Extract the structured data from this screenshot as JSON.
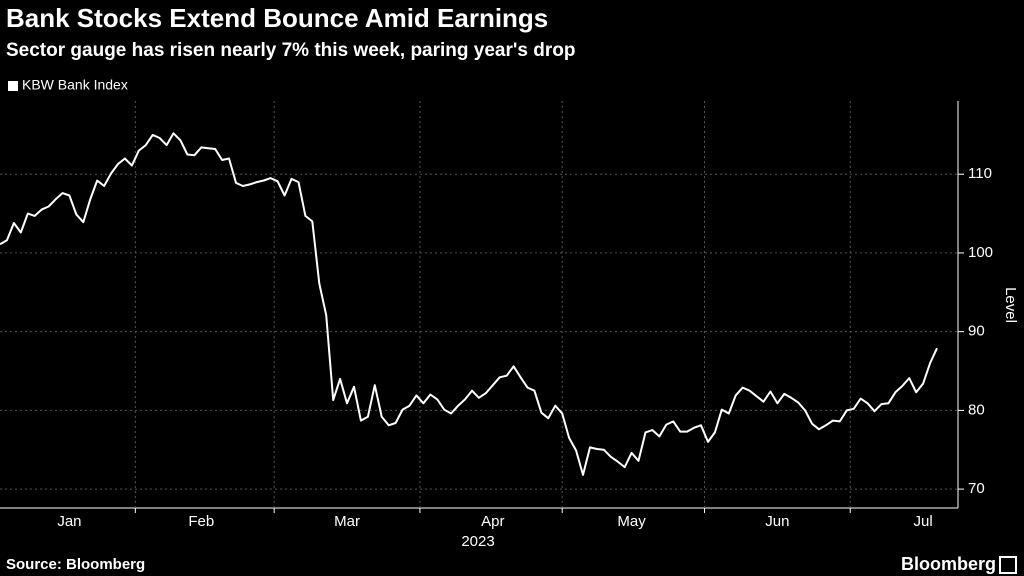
{
  "chart_data": {
    "type": "line",
    "title": "Bank Stocks Extend Bounce Amid Earnings",
    "subtitle": "Sector gauge has risen nearly 7% this week, paring year's drop",
    "y_axis_label": "Level",
    "x_sublabel": "2023",
    "source": "Source: Bloomberg",
    "brand": "Bloomberg",
    "categories": [
      null,
      null,
      null,
      null,
      null,
      null,
      null,
      null,
      null,
      null,
      "Jan",
      null,
      null,
      null,
      null,
      null,
      null,
      null,
      null,
      null,
      null,
      null,
      null,
      null,
      null,
      null,
      null,
      null,
      null,
      "Feb",
      null,
      null,
      null,
      null,
      null,
      null,
      null,
      null,
      null,
      null,
      null,
      null,
      null,
      null,
      null,
      null,
      null,
      null,
      null,
      null,
      "Mar",
      null,
      null,
      null,
      null,
      null,
      null,
      null,
      null,
      null,
      null,
      null,
      null,
      null,
      null,
      null,
      null,
      null,
      null,
      null,
      null,
      "Apr",
      null,
      null,
      null,
      null,
      null,
      null,
      null,
      null,
      null,
      null,
      null,
      null,
      null,
      null,
      null,
      null,
      null,
      null,
      null,
      "May",
      null,
      null,
      null,
      null,
      null,
      null,
      null,
      null,
      null,
      null,
      null,
      null,
      null,
      null,
      null,
      null,
      null,
      null,
      null,
      null,
      "Jun",
      null,
      null,
      null,
      null,
      null,
      null,
      null,
      null,
      null,
      null,
      null,
      null,
      null,
      null,
      null,
      null,
      null,
      null,
      null,
      null,
      "Jul",
      null,
      null
    ],
    "series": [
      {
        "name": "KBW Bank Index",
        "color": "#ffffff",
        "values": [
          101.1,
          101.6,
          103.8,
          102.6,
          105.0,
          104.7,
          105.5,
          105.9,
          106.8,
          107.6,
          107.3,
          104.9,
          103.9,
          106.8,
          109.2,
          108.5,
          110.1,
          111.3,
          112.0,
          111.1,
          113.0,
          113.7,
          115.0,
          114.6,
          113.7,
          115.2,
          114.3,
          112.5,
          112.4,
          113.4,
          113.3,
          113.2,
          111.8,
          112.0,
          108.9,
          108.5,
          108.7,
          109.0,
          109.2,
          109.5,
          109.1,
          107.3,
          109.4,
          109.0,
          104.7,
          104.0,
          96.1,
          92.1,
          81.3,
          84.0,
          80.9,
          83.0,
          78.7,
          79.2,
          83.2,
          79.2,
          78.1,
          78.4,
          80.1,
          80.6,
          81.9,
          80.9,
          82.0,
          81.4,
          80.1,
          79.6,
          80.6,
          81.4,
          82.5,
          81.6,
          82.2,
          83.2,
          84.2,
          84.4,
          85.6,
          84.2,
          82.9,
          82.5,
          79.7,
          79.0,
          80.6,
          79.6,
          76.5,
          74.9,
          71.8,
          75.3,
          75.1,
          75.0,
          74.1,
          73.5,
          72.8,
          74.6,
          73.6,
          77.2,
          77.5,
          76.7,
          78.2,
          78.6,
          77.3,
          77.3,
          77.8,
          78.1,
          76.0,
          77.2,
          80.1,
          79.6,
          81.9,
          82.9,
          82.5,
          81.8,
          81.1,
          82.4,
          80.9,
          82.1,
          81.6,
          81.0,
          80.0,
          78.3,
          77.6,
          78.1,
          78.7,
          78.6,
          80.0,
          80.2,
          81.5,
          80.9,
          79.9,
          80.8,
          80.9,
          82.3,
          83.1,
          84.1,
          82.3,
          83.4,
          86.0,
          87.9
        ]
      }
    ],
    "ylim": [
      67.6,
      119.3
    ],
    "yticks": [
      70,
      80,
      90,
      100,
      110
    ],
    "grid": true,
    "legend": "top-left"
  }
}
